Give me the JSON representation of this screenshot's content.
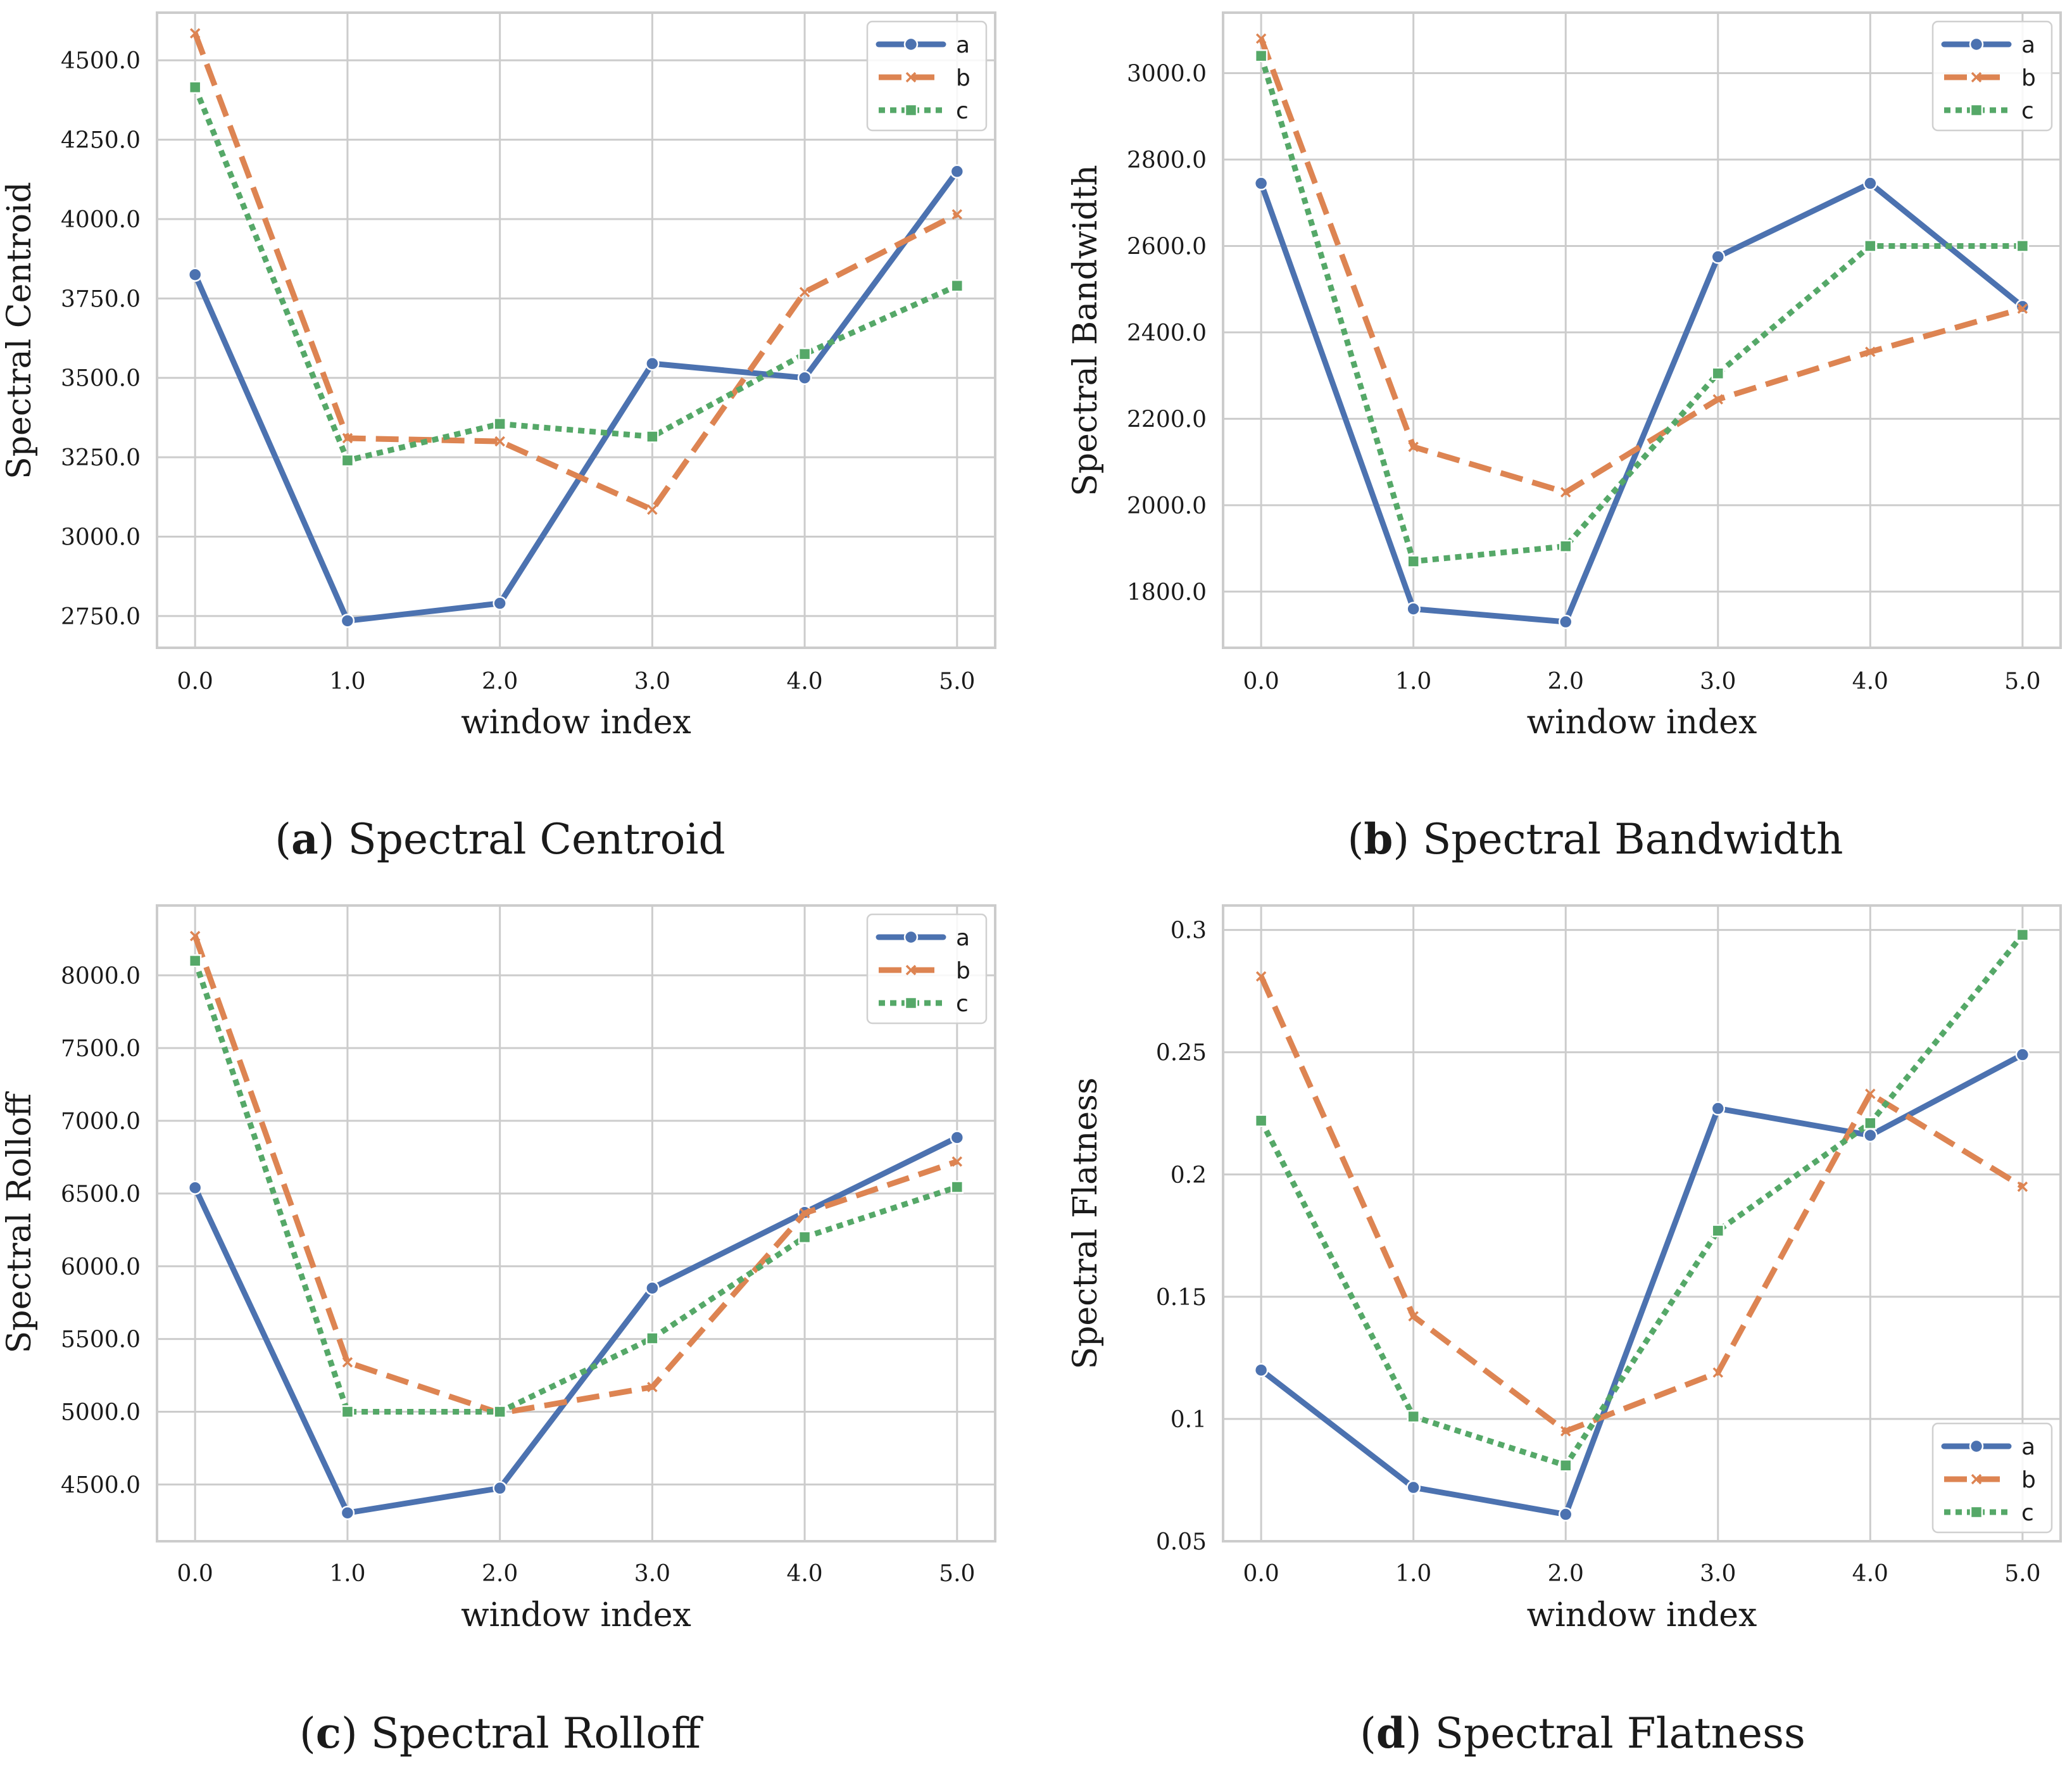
{
  "colors": {
    "a": "#4c72b0",
    "b": "#dd8452",
    "c": "#55a868",
    "grid": "#cccccc",
    "frame": "#cccccc"
  },
  "chart_data": [
    {
      "type": "line",
      "caption_letter": "a",
      "caption_text": "Spectral Centroid",
      "xlabel": "window index",
      "ylabel": "Spectral Centroid",
      "x": [
        0,
        1,
        2,
        3,
        4,
        5
      ],
      "xtick_labels": [
        "0.0",
        "1.0",
        "2.0",
        "3.0",
        "4.0",
        "5.0"
      ],
      "xlim": [
        -0.25,
        5.25
      ],
      "ylim": [
        2650,
        4650
      ],
      "yticks": [
        2750,
        3000,
        3250,
        3500,
        3750,
        4000,
        4250,
        4500
      ],
      "ytick_labels": [
        "2750.0",
        "3000.0",
        "3250.0",
        "3500.0",
        "3750.0",
        "4000.0",
        "4250.0",
        "4500.0"
      ],
      "grid": true,
      "legend_position": "top-right",
      "series": [
        {
          "name": "a",
          "values": [
            3825,
            2735,
            2790,
            3545,
            3500,
            4150
          ]
        },
        {
          "name": "b",
          "values": [
            4585,
            3310,
            3300,
            3085,
            3770,
            4015
          ]
        },
        {
          "name": "c",
          "values": [
            4415,
            3240,
            3355,
            3315,
            3575,
            3790
          ]
        }
      ]
    },
    {
      "type": "line",
      "caption_letter": "b",
      "caption_text": "Spectral Bandwidth",
      "xlabel": "window index",
      "ylabel": "Spectral Bandwidth",
      "x": [
        0,
        1,
        2,
        3,
        4,
        5
      ],
      "xtick_labels": [
        "0.0",
        "1.0",
        "2.0",
        "3.0",
        "4.0",
        "5.0"
      ],
      "xlim": [
        -0.25,
        5.25
      ],
      "ylim": [
        1670,
        3140
      ],
      "yticks": [
        1800,
        2000,
        2200,
        2400,
        2600,
        2800,
        3000
      ],
      "ytick_labels": [
        "1800.0",
        "2000.0",
        "2200.0",
        "2400.0",
        "2600.0",
        "2800.0",
        "3000.0"
      ],
      "grid": true,
      "legend_position": "top-right",
      "series": [
        {
          "name": "a",
          "values": [
            2745,
            1760,
            1730,
            2575,
            2745,
            2460
          ]
        },
        {
          "name": "b",
          "values": [
            3080,
            2135,
            2030,
            2245,
            2355,
            2455
          ]
        },
        {
          "name": "c",
          "values": [
            3040,
            1870,
            1905,
            2305,
            2600,
            2600
          ]
        }
      ]
    },
    {
      "type": "line",
      "caption_letter": "c",
      "caption_text": "Spectral Rolloff",
      "xlabel": "window index",
      "ylabel": "Spectral Rolloff",
      "x": [
        0,
        1,
        2,
        3,
        4,
        5
      ],
      "xtick_labels": [
        "0.0",
        "1.0",
        "2.0",
        "3.0",
        "4.0",
        "5.0"
      ],
      "xlim": [
        -0.25,
        5.25
      ],
      "ylim": [
        4110,
        8480
      ],
      "yticks": [
        4500,
        5000,
        5500,
        6000,
        6500,
        7000,
        7500,
        8000
      ],
      "ytick_labels": [
        "4500.0",
        "5000.0",
        "5500.0",
        "6000.0",
        "6500.0",
        "7000.0",
        "7500.0",
        "8000.0"
      ],
      "grid": true,
      "legend_position": "top-right",
      "series": [
        {
          "name": "a",
          "values": [
            6540,
            4305,
            4475,
            5850,
            6370,
            6885
          ]
        },
        {
          "name": "b",
          "values": [
            8270,
            5340,
            4990,
            5170,
            6365,
            6720
          ]
        },
        {
          "name": "c",
          "values": [
            8100,
            5000,
            5000,
            5505,
            6200,
            6545
          ]
        }
      ]
    },
    {
      "type": "line",
      "caption_letter": "d",
      "caption_text": "Spectral Flatness",
      "xlabel": "window index",
      "ylabel": "Spectral Flatness",
      "x": [
        0,
        1,
        2,
        3,
        4,
        5
      ],
      "xtick_labels": [
        "0.0",
        "1.0",
        "2.0",
        "3.0",
        "4.0",
        "5.0"
      ],
      "xlim": [
        -0.25,
        5.25
      ],
      "ylim": [
        0.05,
        0.31
      ],
      "yticks": [
        0.05,
        0.1,
        0.15,
        0.2,
        0.25,
        0.3
      ],
      "ytick_labels": [
        "0.05",
        "0.1",
        "0.15",
        "0.2",
        "0.25",
        "0.3"
      ],
      "grid": true,
      "legend_position": "bottom-right",
      "series": [
        {
          "name": "a",
          "values": [
            0.12,
            0.072,
            0.061,
            0.227,
            0.216,
            0.249
          ]
        },
        {
          "name": "b",
          "values": [
            0.281,
            0.142,
            0.095,
            0.119,
            0.233,
            0.195
          ]
        },
        {
          "name": "c",
          "values": [
            0.222,
            0.101,
            0.081,
            0.177,
            0.221,
            0.298
          ]
        }
      ]
    }
  ]
}
